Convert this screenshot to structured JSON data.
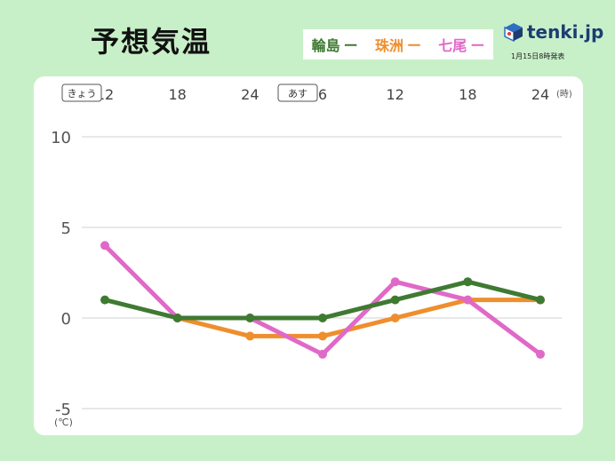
{
  "header": {
    "title": "予想気温",
    "issued": "1月15日8時発表",
    "logo_text": "tenki.jp"
  },
  "legend": [
    {
      "name": "輪島",
      "color": "#3f7a32",
      "dash": "ー"
    },
    {
      "name": "珠洲",
      "color": "#ef8e2d",
      "dash": "ー"
    },
    {
      "name": "七尾",
      "color": "#e069c8",
      "dash": "ー"
    }
  ],
  "chart_data": {
    "type": "line",
    "day_tags": [
      "きょう",
      "あす"
    ],
    "x": [
      "12",
      "18",
      "24",
      "6",
      "12",
      "18",
      "24"
    ],
    "x_unit": "(時)",
    "y_unit": "(℃)",
    "ylim": [
      -5,
      10
    ],
    "yticks": [
      "10",
      "5",
      "0",
      "-5"
    ],
    "grid": true,
    "series": [
      {
        "name": "輪島",
        "color": "#3f7a32",
        "values": [
          1,
          0,
          0,
          0,
          1,
          2,
          1
        ]
      },
      {
        "name": "珠洲",
        "color": "#ef8e2d",
        "values": [
          null,
          0,
          -1,
          -1,
          0,
          1,
          1
        ]
      },
      {
        "name": "七尾",
        "color": "#e069c8",
        "values": [
          4,
          0,
          0,
          -2,
          2,
          1,
          -2
        ]
      }
    ]
  }
}
